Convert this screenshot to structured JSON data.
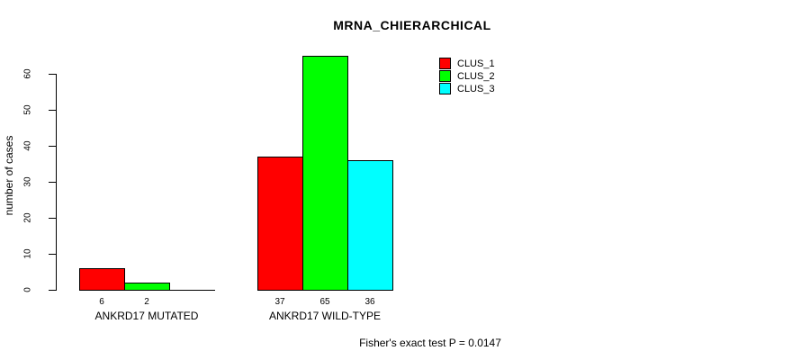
{
  "page": {
    "background": "#ffffff"
  },
  "chart_data": {
    "type": "bar",
    "title": "MRNA_CHIERARCHICAL",
    "ylabel": "number of cases",
    "xlabel": "",
    "categories": [
      "ANKRD17 MUTATED",
      "ANKRD17 WILD-TYPE"
    ],
    "series": [
      {
        "name": "CLUS_1",
        "color": "#ff0000",
        "values": [
          6,
          37
        ]
      },
      {
        "name": "CLUS_2",
        "color": "#00ff00",
        "values": [
          2,
          65
        ]
      },
      {
        "name": "CLUS_3",
        "color": "#00ffff",
        "values": [
          0,
          36
        ]
      }
    ],
    "bar_value_labels": [
      [
        "6",
        "2",
        ""
      ],
      [
        "37",
        "65",
        "36"
      ]
    ],
    "yticks": [
      0,
      10,
      20,
      30,
      40,
      50,
      60
    ],
    "ylim": [
      0,
      65
    ],
    "grid": false,
    "legend_position": "top-right",
    "annotation": "Fisher's exact test P = 0.0147",
    "axis_color": "#000000",
    "bar_border_color": "#000000",
    "text_color": "#000000"
  }
}
